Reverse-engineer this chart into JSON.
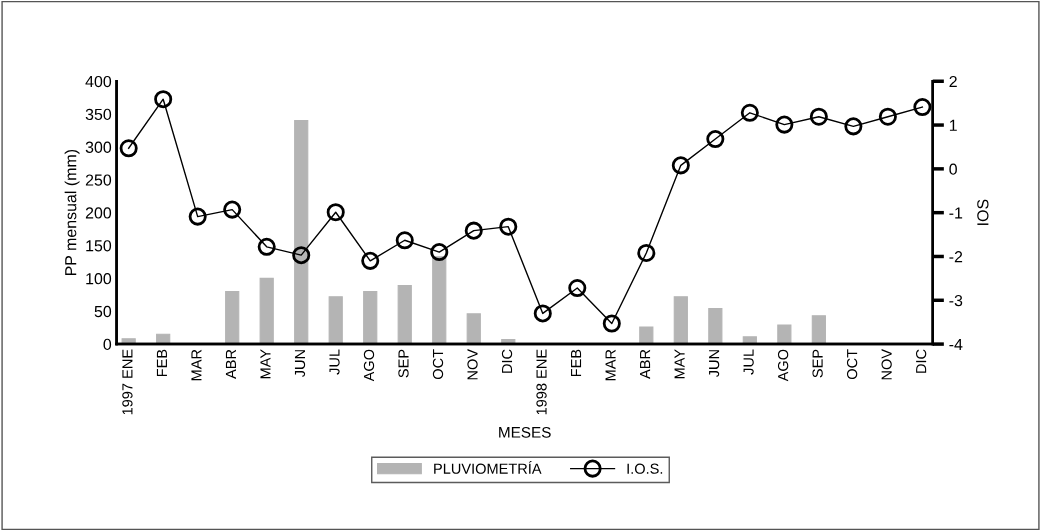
{
  "chart_data": {
    "type": "bar",
    "xlabel": "MESES",
    "ylabel": "PP mensual (mm)",
    "y2label": "IOS",
    "categories": [
      "1997 ENE",
      "FEB",
      "MAR",
      "ABR",
      "MAY",
      "JUN",
      "JUL",
      "AGO",
      "SEP",
      "OCT",
      "NOV",
      "DIC",
      "1998 ENE",
      "FEB",
      "MAR",
      "ABR",
      "MAY",
      "JUN",
      "JUL",
      "AGO",
      "SEP",
      "OCT",
      "NOV",
      "DIC"
    ],
    "series": [
      {
        "name": "PLUVIOMETRÍA",
        "color": "#b4b4b4",
        "values": [
          8,
          15,
          0,
          80,
          100,
          340,
          72,
          80,
          89,
          133,
          46,
          7,
          0,
          0,
          0,
          26,
          72,
          54,
          11,
          29,
          43,
          0,
          0,
          0
        ]
      },
      {
        "name": "I.O.S.",
        "type": "line",
        "axis": "y2",
        "color": "#000000",
        "marker": "circle",
        "values": [
          0.47,
          1.59,
          -1.09,
          -0.93,
          -1.78,
          -1.97,
          -0.99,
          -2.1,
          -1.63,
          -1.9,
          -1.41,
          -1.32,
          -3.3,
          -2.72,
          -3.53,
          -1.92,
          0.08,
          0.68,
          1.28,
          1.01,
          1.19,
          0.97,
          1.19,
          1.41
        ]
      }
    ],
    "ylim": [
      0,
      400
    ],
    "yticks": [
      0,
      50,
      100,
      150,
      200,
      250,
      300,
      350,
      400
    ],
    "y2lim": [
      -4,
      2
    ],
    "y2ticks": [
      -4,
      -3,
      -2,
      -1,
      0,
      1,
      2
    ],
    "grid": false,
    "legend": "bottom"
  }
}
